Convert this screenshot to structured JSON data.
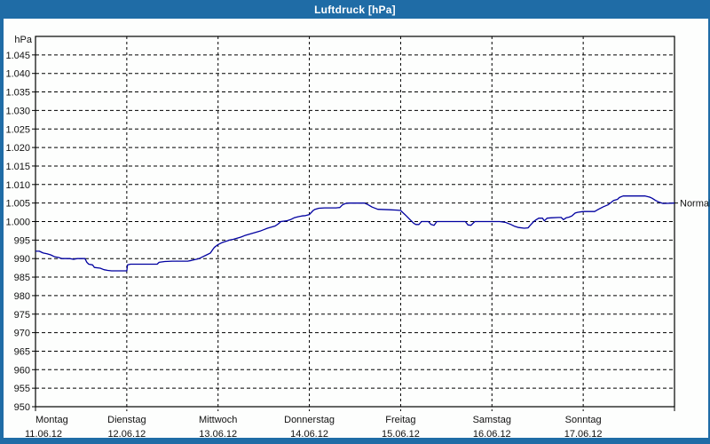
{
  "window": {
    "title": "Luftdruck [hPa]",
    "title_bar_color": "#1f6ca6",
    "client_background": "#fdfefd"
  },
  "chart_data": {
    "type": "line",
    "title": "Luftdruck [hPa]",
    "unit_label": "hPa",
    "ylabel": "hPa",
    "xlabel": "",
    "ylim": [
      950,
      1050
    ],
    "grid": "dashed",
    "legend_position": "none",
    "line_color": "#0000a0",
    "grid_color": "#000000",
    "normal_marker": {
      "label": "Normal",
      "value": 1005
    },
    "y_ticks": [
      {
        "value": 1045,
        "label": "1.045"
      },
      {
        "value": 1040,
        "label": "1.040"
      },
      {
        "value": 1035,
        "label": "1.035"
      },
      {
        "value": 1030,
        "label": "1.030"
      },
      {
        "value": 1025,
        "label": "1.025"
      },
      {
        "value": 1020,
        "label": "1.020"
      },
      {
        "value": 1015,
        "label": "1.015"
      },
      {
        "value": 1010,
        "label": "1.010"
      },
      {
        "value": 1005,
        "label": "1.005"
      },
      {
        "value": 1000,
        "label": "1.000"
      },
      {
        "value": 995,
        "label": "995"
      },
      {
        "value": 990,
        "label": "990"
      },
      {
        "value": 985,
        "label": "985"
      },
      {
        "value": 980,
        "label": "980"
      },
      {
        "value": 975,
        "label": "975"
      },
      {
        "value": 970,
        "label": "970"
      },
      {
        "value": 965,
        "label": "965"
      },
      {
        "value": 960,
        "label": "960"
      },
      {
        "value": 955,
        "label": "955"
      },
      {
        "value": 950,
        "label": "950"
      }
    ],
    "x_days": [
      {
        "day": "Montag",
        "date": "11.06.12"
      },
      {
        "day": "Dienstag",
        "date": "12.06.12"
      },
      {
        "day": "Mittwoch",
        "date": "13.06.12"
      },
      {
        "day": "Donnerstag",
        "date": "14.06.12"
      },
      {
        "day": "Freitag",
        "date": "15.06.12"
      },
      {
        "day": "Samstag",
        "date": "16.06.12"
      },
      {
        "day": "Sonntag",
        "date": "17.06.12"
      }
    ],
    "hours_total": 168,
    "series": [
      {
        "name": "Luftdruck",
        "color": "#0000a0",
        "points": [
          [
            0,
            992
          ],
          [
            1,
            992
          ],
          [
            2,
            991.5
          ],
          [
            3,
            991.3
          ],
          [
            4,
            991
          ],
          [
            5,
            990.5
          ],
          [
            6,
            990.3
          ],
          [
            7,
            990
          ],
          [
            9,
            990
          ],
          [
            10,
            989.8
          ],
          [
            11,
            990
          ],
          [
            13,
            990
          ],
          [
            13.5,
            989
          ],
          [
            14,
            988.5
          ],
          [
            15,
            988.3
          ],
          [
            15.5,
            987.6
          ],
          [
            17,
            987.4
          ],
          [
            18,
            987
          ],
          [
            19,
            986.8
          ],
          [
            20,
            986.7
          ],
          [
            24,
            986.7
          ],
          [
            24.2,
            988.3
          ],
          [
            25,
            988.5
          ],
          [
            32,
            988.5
          ],
          [
            32.5,
            989
          ],
          [
            34,
            989.2
          ],
          [
            36,
            989.3
          ],
          [
            40,
            989.3
          ],
          [
            41,
            989.5
          ],
          [
            43,
            990
          ],
          [
            44,
            990.5
          ],
          [
            45,
            991
          ],
          [
            46,
            991.5
          ],
          [
            46.5,
            992.3
          ],
          [
            47,
            993
          ],
          [
            48,
            993.8
          ],
          [
            49,
            994.3
          ],
          [
            51,
            995
          ],
          [
            52,
            995.2
          ],
          [
            54,
            995.8
          ],
          [
            55,
            996.2
          ],
          [
            57,
            996.8
          ],
          [
            59,
            997.4
          ],
          [
            60,
            997.8
          ],
          [
            61,
            998.2
          ],
          [
            63,
            998.8
          ],
          [
            64,
            999.5
          ],
          [
            64.5,
            1000
          ],
          [
            66,
            1000.2
          ],
          [
            67,
            1000.5
          ],
          [
            68,
            1001
          ],
          [
            69,
            1001.3
          ],
          [
            70,
            1001.5
          ],
          [
            71,
            1001.6
          ],
          [
            72,
            1001.9
          ],
          [
            73,
            1003
          ],
          [
            73.5,
            1003.3
          ],
          [
            74.5,
            1003.6
          ],
          [
            76,
            1003.7
          ],
          [
            79,
            1003.7
          ],
          [
            80,
            1003.8
          ],
          [
            80.7,
            1004.5
          ],
          [
            81.5,
            1004.9
          ],
          [
            82.5,
            1005
          ],
          [
            86.5,
            1005
          ],
          [
            87.5,
            1004.5
          ],
          [
            88.5,
            1003.9
          ],
          [
            90,
            1003.3
          ],
          [
            93,
            1003.2
          ],
          [
            95,
            1003.1
          ],
          [
            96,
            1003
          ],
          [
            96.5,
            1002.5
          ],
          [
            97.5,
            1001.5
          ],
          [
            98.5,
            1000.5
          ],
          [
            99.5,
            999.5
          ],
          [
            100,
            999.2
          ],
          [
            100.8,
            999.2
          ],
          [
            101.5,
            1000
          ],
          [
            103.3,
            1000
          ],
          [
            104,
            999.2
          ],
          [
            104.8,
            999
          ],
          [
            105.5,
            1000
          ],
          [
            113,
            1000
          ],
          [
            113.7,
            999.1
          ],
          [
            114.5,
            999
          ],
          [
            115.5,
            1000
          ],
          [
            120,
            1000
          ],
          [
            122,
            1000
          ],
          [
            123.5,
            999.8
          ],
          [
            125,
            999.2
          ],
          [
            126,
            998.7
          ],
          [
            127,
            998.4
          ],
          [
            128.5,
            998.2
          ],
          [
            129.5,
            998.3
          ],
          [
            130,
            998.9
          ],
          [
            131,
            1000
          ],
          [
            131.5,
            1000.4
          ],
          [
            132.3,
            1000.9
          ],
          [
            133.3,
            1000.9
          ],
          [
            133.8,
            1000.2
          ],
          [
            134.5,
            1000.9
          ],
          [
            135.5,
            1001
          ],
          [
            137.5,
            1001.1
          ],
          [
            138.2,
            1001.1
          ],
          [
            138.8,
            1000.5
          ],
          [
            139.5,
            1001
          ],
          [
            140.3,
            1001.2
          ],
          [
            141,
            1001.5
          ],
          [
            141.9,
            1002.3
          ],
          [
            142.5,
            1002.5
          ],
          [
            144,
            1002.7
          ],
          [
            147,
            1002.7
          ],
          [
            148,
            1003.3
          ],
          [
            149.3,
            1004
          ],
          [
            150.5,
            1004.5
          ],
          [
            151,
            1004.9
          ],
          [
            152,
            1005.7
          ],
          [
            153,
            1006
          ],
          [
            153.5,
            1006.5
          ],
          [
            154.5,
            1006.9
          ],
          [
            160.3,
            1006.9
          ],
          [
            161.5,
            1006.6
          ],
          [
            162.1,
            1006.3
          ],
          [
            163,
            1005.7
          ],
          [
            164,
            1005.2
          ],
          [
            165,
            1004.9
          ],
          [
            168,
            1005
          ]
        ]
      }
    ]
  }
}
